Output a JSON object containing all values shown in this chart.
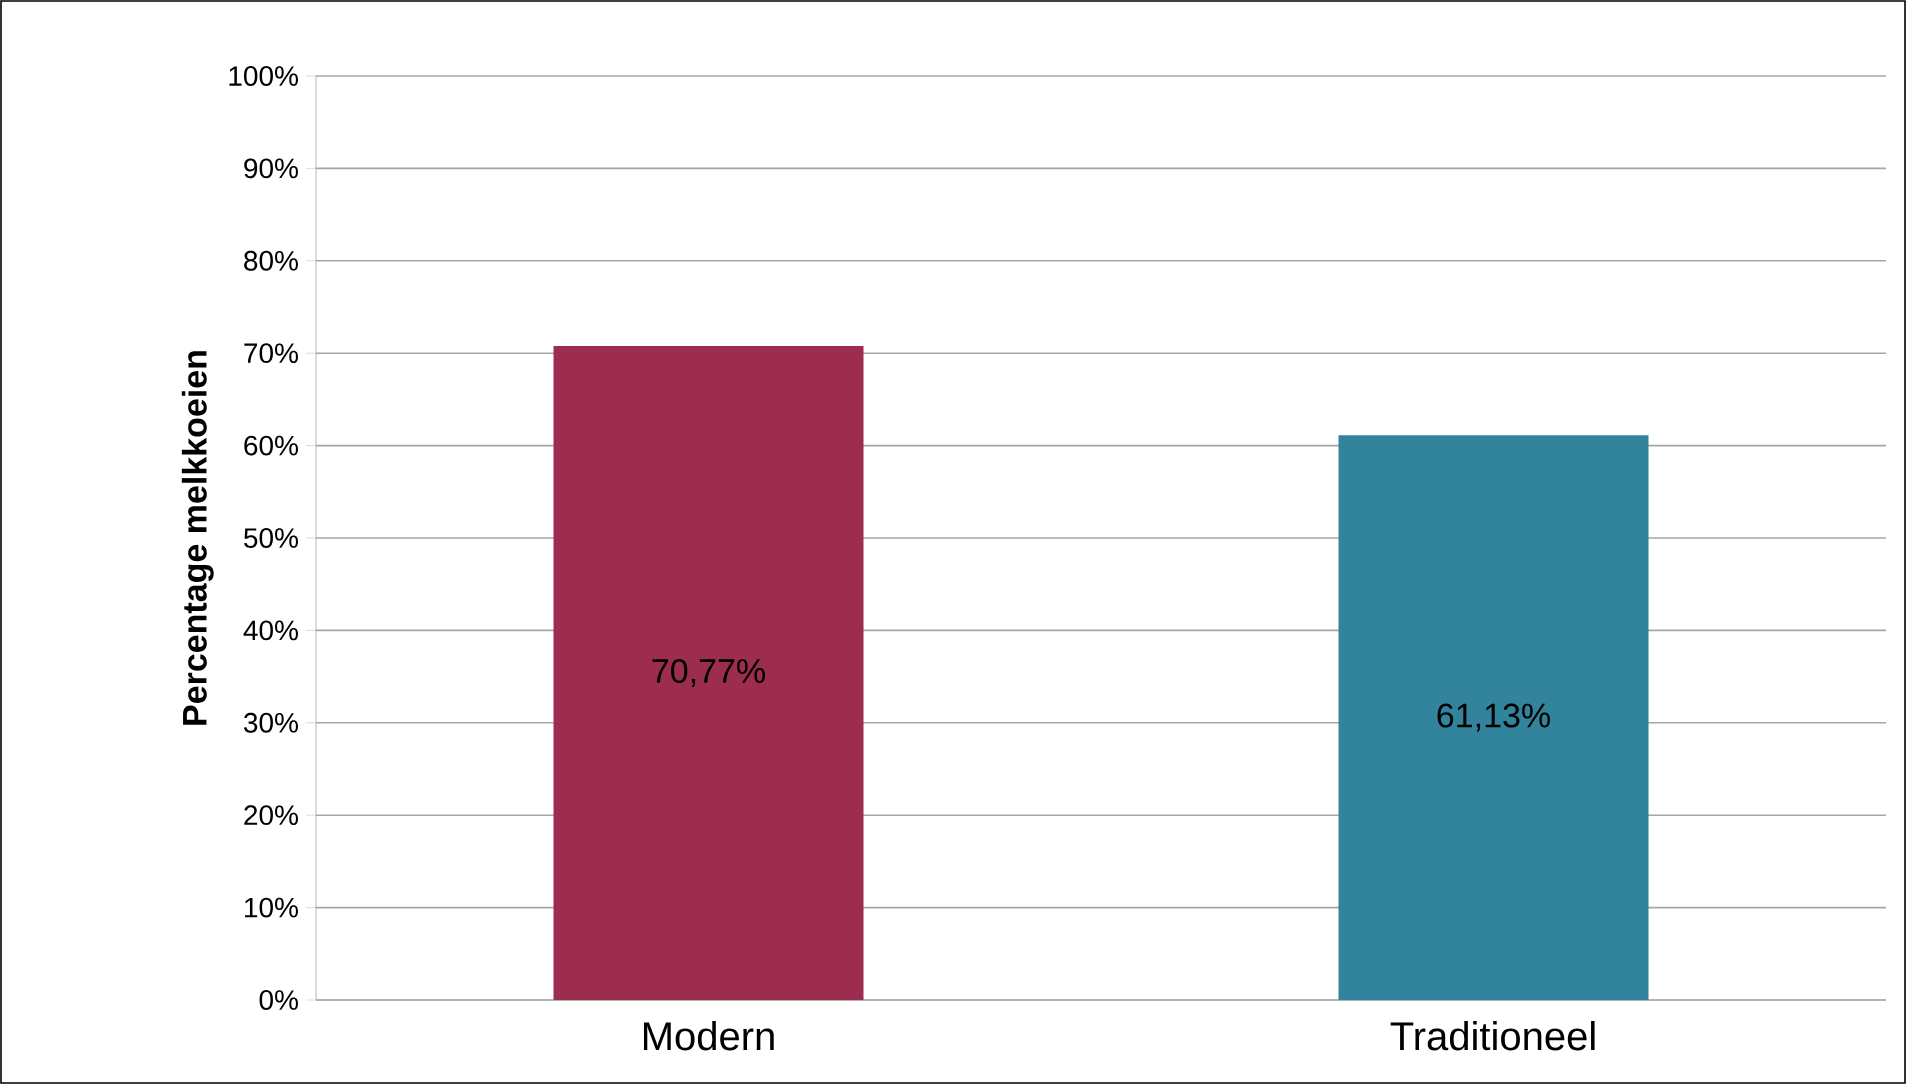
{
  "chart_data": {
    "type": "bar",
    "ylabel": "Percentage melkkoeien",
    "categories": [
      "Modern",
      "Traditioneel"
    ],
    "values": [
      70.77,
      61.13
    ],
    "colors": [
      "#9c2d4e",
      "#31849b"
    ],
    "value_labels": [
      "70,77%",
      "61,13%"
    ],
    "ylim": [
      0,
      100
    ],
    "yticks": [
      {
        "value": 0,
        "label": "0%"
      },
      {
        "value": 10,
        "label": "10%"
      },
      {
        "value": 20,
        "label": "20%"
      },
      {
        "value": 30,
        "label": "30%"
      },
      {
        "value": 40,
        "label": "40%"
      },
      {
        "value": 50,
        "label": "50%"
      },
      {
        "value": 60,
        "label": "60%"
      },
      {
        "value": 70,
        "label": "70%"
      },
      {
        "value": 80,
        "label": "80%"
      },
      {
        "value": 90,
        "label": "90%"
      },
      {
        "value": 100,
        "label": "100%"
      }
    ],
    "grid": "y"
  }
}
